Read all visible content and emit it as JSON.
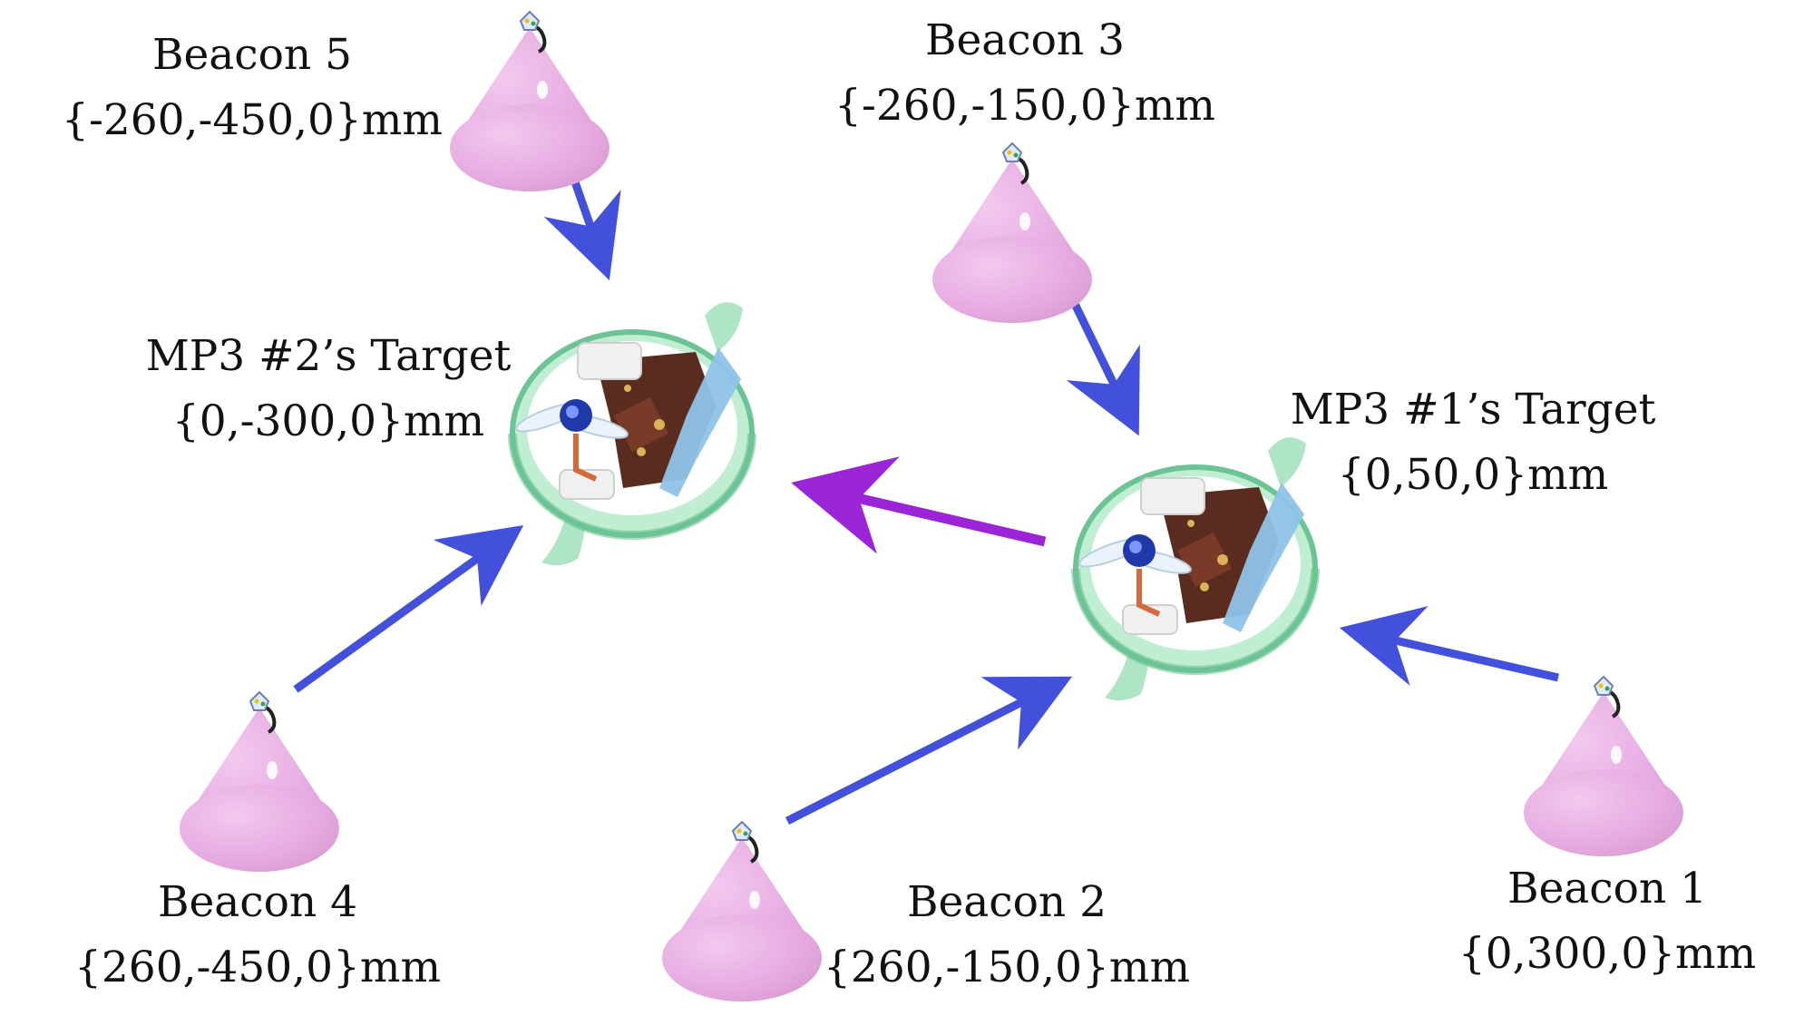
{
  "beacons": [
    {
      "name": "Beacon 1",
      "coords": "{0,300,0}mm"
    },
    {
      "name": "Beacon 2",
      "coords": "{260,-150,0}mm"
    },
    {
      "name": "Beacon 3",
      "coords": "{-260,-150,0}mm"
    },
    {
      "name": "Beacon 4",
      "coords": "{260,-450,0}mm"
    },
    {
      "name": "Beacon 5",
      "coords": "{-260,-450,0}mm"
    }
  ],
  "targets": [
    {
      "name": "MP3 #1’s Target",
      "coords": "{0,50,0}mm"
    },
    {
      "name": "MP3 #2’s Target",
      "coords": "{0,-300,0}mm"
    }
  ],
  "colors": {
    "beacon_fill": "#e5a9e0",
    "beacon_shade": "#c98bc4",
    "arrow_beacon": "#4350dc",
    "arrow_transfer": "#9a24d6",
    "drone_frame": "#9fe0bb",
    "drone_frame_dark": "#6cc393",
    "drone_board": "#5a2b1f",
    "drone_accent": "#8fc3e8"
  }
}
